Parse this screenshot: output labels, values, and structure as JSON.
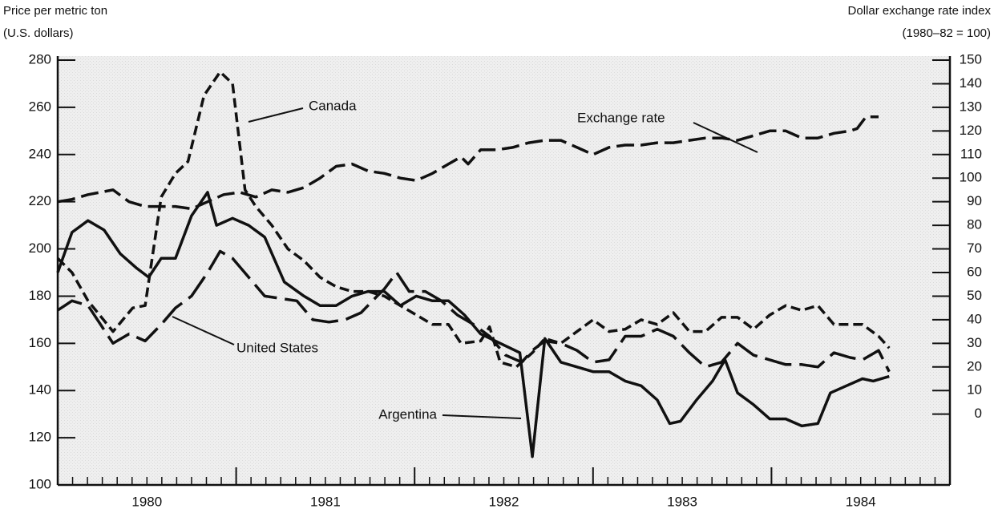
{
  "chart_data": {
    "type": "line",
    "y_label": [
      "Price per metric ton",
      "(U.S. dollars)"
    ],
    "y2_label": [
      "Dollar exchange rate index",
      "(1980–82 = 100)"
    ],
    "xlim": [
      1980,
      1985
    ],
    "xticks": [
      {
        "value": 1980.5,
        "label": "1980"
      },
      {
        "value": 1981.5,
        "label": "1981"
      },
      {
        "value": 1982.5,
        "label": "1982"
      },
      {
        "value": 1983.5,
        "label": "1983"
      },
      {
        "value": 1984.5,
        "label": "1984"
      }
    ],
    "ylim": [
      100,
      280
    ],
    "yticks": [
      100,
      120,
      140,
      160,
      180,
      200,
      220,
      240,
      260,
      280
    ],
    "y2lim": [
      -30,
      150
    ],
    "y2ticks": [
      0,
      10,
      20,
      30,
      40,
      50,
      60,
      70,
      80,
      90,
      100,
      110,
      120,
      130,
      140,
      150
    ],
    "series": [
      {
        "name": "Argentina",
        "color": "#111111",
        "dash": "solid",
        "x": [
          1980.0,
          1980.08,
          1980.17,
          1980.26,
          1980.35,
          1980.44,
          1980.51,
          1980.58,
          1980.66,
          1980.75,
          1980.84,
          1980.89,
          1980.98,
          1981.07,
          1981.16,
          1981.27,
          1981.38,
          1981.47,
          1981.56,
          1981.65,
          1981.74,
          1981.83,
          1981.92,
          1982.01,
          1982.1,
          1982.19,
          1982.28,
          1982.37,
          1982.48,
          1982.59,
          1982.66,
          1982.73,
          1982.82,
          1982.91,
          1983.0,
          1983.09,
          1983.18,
          1983.27,
          1983.36,
          1983.43,
          1983.49,
          1983.58,
          1983.67,
          1983.74,
          1983.81,
          1983.9,
          1983.99,
          1984.08,
          1984.17,
          1984.26,
          1984.33,
          1984.42,
          1984.51,
          1984.57,
          1984.66
        ],
        "values": [
          190,
          207,
          212,
          208,
          198,
          192,
          188,
          196,
          196,
          214,
          224,
          210,
          213,
          210,
          205,
          186,
          180,
          176,
          176,
          180,
          182,
          182,
          176,
          180,
          178,
          178,
          172,
          164,
          160,
          156,
          112,
          162,
          152,
          150,
          148,
          148,
          144,
          142,
          136,
          126,
          127,
          136,
          144,
          153,
          139,
          134,
          128,
          128,
          125,
          126,
          139,
          142,
          145,
          144,
          146
        ]
      },
      {
        "name": "Canada",
        "color": "#111111",
        "dash": "short",
        "x": [
          1980.0,
          1980.08,
          1980.17,
          1980.31,
          1980.42,
          1980.49,
          1980.58,
          1980.66,
          1980.73,
          1980.82,
          1980.91,
          1980.98,
          1981.05,
          1981.11,
          1981.2,
          1981.29,
          1981.38,
          1981.47,
          1981.56,
          1981.65,
          1981.74,
          1981.83,
          1981.92,
          1982.01,
          1982.1,
          1982.19,
          1982.26,
          1982.37,
          1982.42,
          1982.48,
          1982.57,
          1982.66,
          1982.73,
          1982.82,
          1982.91,
          1983.0,
          1983.09,
          1983.18,
          1983.27,
          1983.36,
          1983.45,
          1983.54,
          1983.63,
          1983.72,
          1983.81,
          1983.9,
          1983.99,
          1984.08,
          1984.17,
          1984.26,
          1984.35,
          1984.44,
          1984.51,
          1984.6,
          1984.66
        ],
        "values": [
          196,
          190,
          178,
          165,
          175,
          176,
          222,
          232,
          237,
          265,
          275,
          270,
          225,
          218,
          210,
          200,
          195,
          188,
          184,
          182,
          182,
          180,
          176,
          172,
          168,
          168,
          160,
          161,
          167,
          152,
          150,
          156,
          162,
          160,
          165,
          170,
          165,
          166,
          170,
          168,
          173,
          165,
          165,
          171,
          171,
          166,
          172,
          176,
          174,
          176,
          168,
          168,
          168,
          163,
          158
        ]
      },
      {
        "name": "United States",
        "color": "#111111",
        "dash": "long",
        "x": [
          1980.0,
          1980.08,
          1980.17,
          1980.31,
          1980.4,
          1980.49,
          1980.58,
          1980.66,
          1980.75,
          1980.84,
          1980.91,
          1980.98,
          1981.07,
          1981.16,
          1981.25,
          1981.34,
          1981.43,
          1981.52,
          1981.61,
          1981.7,
          1981.79,
          1981.83,
          1981.9,
          1981.97,
          1982.06,
          1982.15,
          1982.24,
          1982.33,
          1982.42,
          1982.51,
          1982.6,
          1982.66,
          1982.73,
          1982.82,
          1982.91,
          1983.0,
          1983.09,
          1983.18,
          1983.27,
          1983.36,
          1983.45,
          1983.54,
          1983.63,
          1983.72,
          1983.81,
          1983.9,
          1983.99,
          1984.08,
          1984.17,
          1984.26,
          1984.35,
          1984.44,
          1984.51,
          1984.6,
          1984.66
        ],
        "values": [
          174,
          178,
          176,
          160,
          164,
          161,
          168,
          175,
          180,
          190,
          199,
          196,
          188,
          180,
          179,
          178,
          170,
          169,
          170,
          173,
          180,
          183,
          190,
          182,
          182,
          178,
          172,
          168,
          163,
          155,
          152,
          157,
          161,
          160,
          157,
          152,
          153,
          163,
          163,
          166,
          163,
          156,
          150,
          152,
          160,
          155,
          153,
          151,
          151,
          150,
          156,
          154,
          153,
          157,
          148
        ]
      },
      {
        "name": "Exchange rate",
        "color": "#111111",
        "dash": "medium",
        "axis": "y2",
        "x": [
          1980.0,
          1980.08,
          1980.17,
          1980.31,
          1980.4,
          1980.49,
          1980.58,
          1980.66,
          1980.75,
          1980.84,
          1980.93,
          1981.02,
          1981.11,
          1981.2,
          1981.29,
          1981.38,
          1981.47,
          1981.56,
          1981.65,
          1981.74,
          1981.83,
          1981.92,
          1982.01,
          1982.1,
          1982.19,
          1982.26,
          1982.3,
          1982.37,
          1982.46,
          1982.55,
          1982.64,
          1982.73,
          1982.82,
          1982.91,
          1983.0,
          1983.09,
          1983.18,
          1983.27,
          1983.36,
          1983.45,
          1983.54,
          1983.63,
          1983.72,
          1983.81,
          1983.9,
          1983.99,
          1984.08,
          1984.17,
          1984.26,
          1984.35,
          1984.44,
          1984.48,
          1984.53,
          1984.6
        ],
        "values": [
          90,
          91,
          93,
          95,
          90,
          88,
          88,
          88,
          87,
          90,
          93,
          94,
          92,
          95,
          94,
          96,
          100,
          105,
          106,
          103,
          102,
          100,
          99,
          102,
          106,
          109,
          106,
          112,
          112,
          113,
          115,
          116,
          116,
          113,
          110,
          113,
          114,
          114,
          115,
          115,
          116,
          117,
          117,
          116,
          118,
          120,
          120,
          117,
          117,
          119,
          120,
          121,
          126,
          126
        ]
      }
    ],
    "annotations": [
      "Canada",
      "Exchange rate",
      "United States",
      "Argentina"
    ]
  }
}
